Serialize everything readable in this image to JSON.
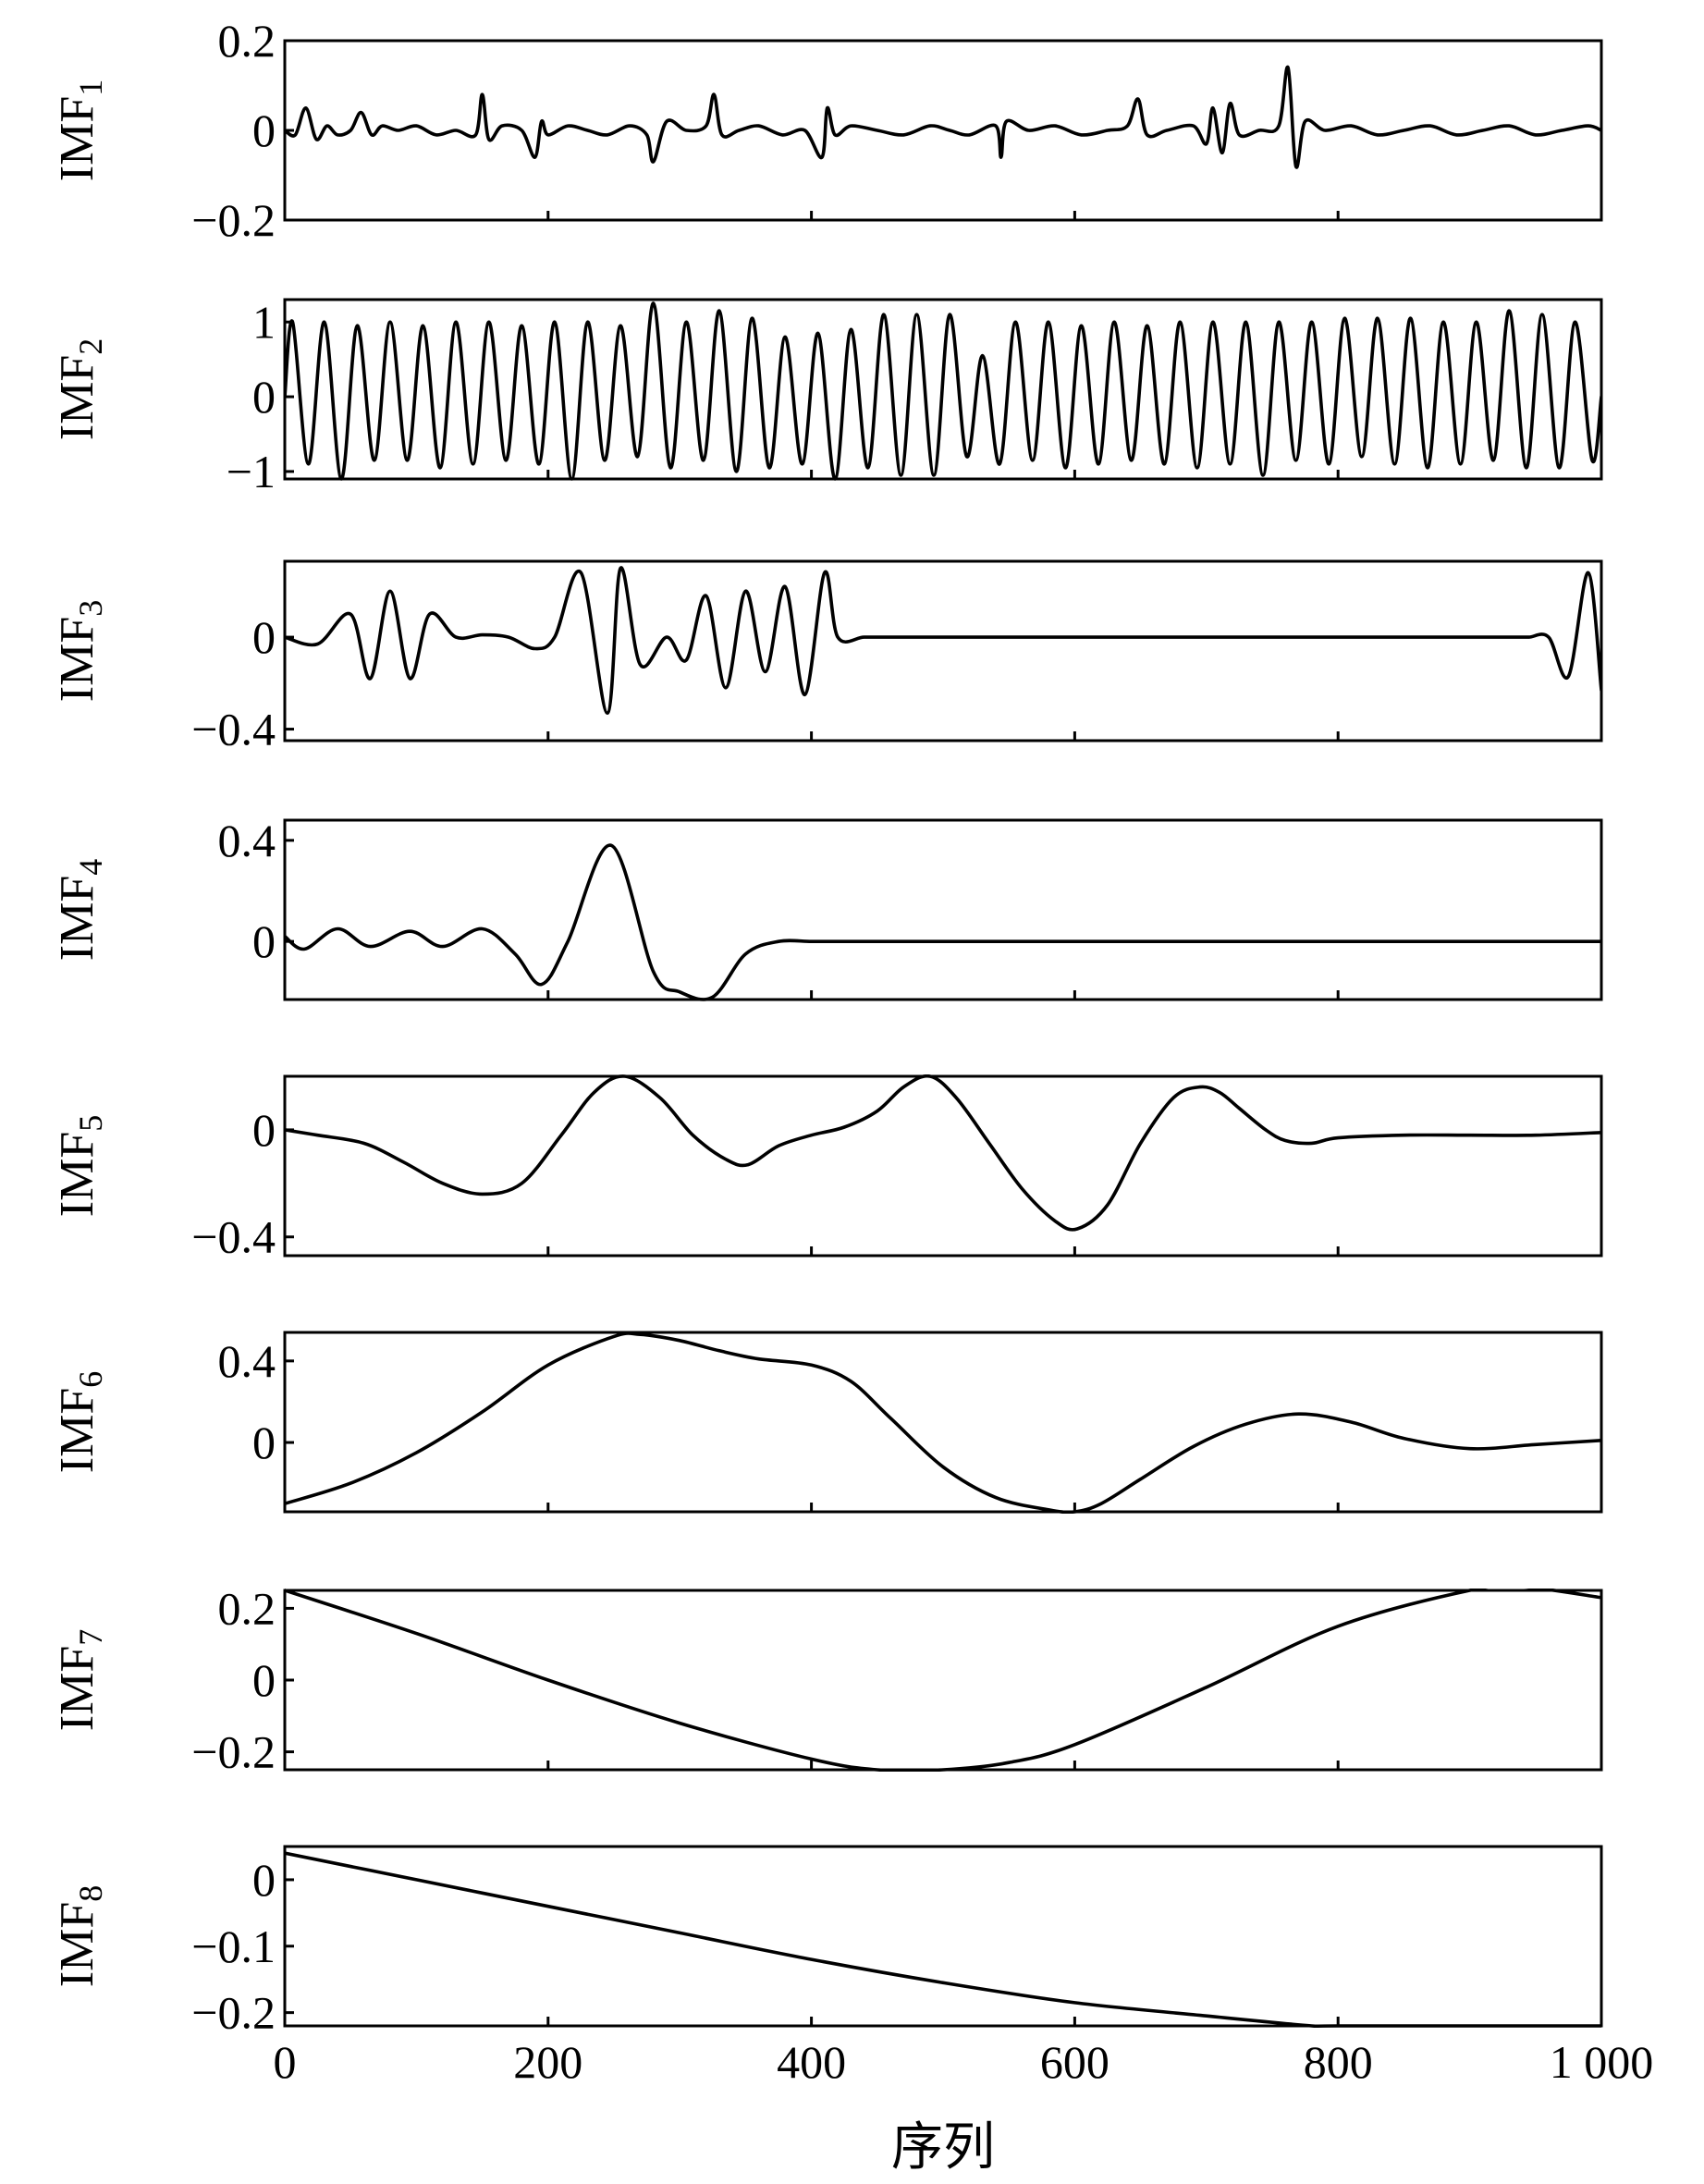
{
  "chart_data": {
    "type": "line",
    "layout": "stacked-subplots",
    "xlabel": "序列",
    "xlim": [
      0,
      1000
    ],
    "xticks": [
      0,
      200,
      400,
      600,
      800,
      1000
    ],
    "xtick_labels": [
      "0",
      "200",
      "400",
      "600",
      "800",
      "1 000"
    ],
    "color": "#000000",
    "subplots": [
      {
        "name": "IMF1",
        "ylabel": "IMF",
        "ylabel_sub": "1",
        "ylim": [
          -0.2,
          0.2
        ],
        "yticks": [
          0.2,
          0,
          -0.2
        ],
        "ytick_labels": [
          "0.2",
          "0",
          "−0.2"
        ],
        "x": [
          0,
          8,
          16,
          24,
          32,
          40,
          50,
          58,
          66,
          74,
          86,
          100,
          115,
          130,
          145,
          150,
          155,
          165,
          180,
          190,
          195,
          200,
          215,
          230,
          245,
          262,
          275,
          280,
          290,
          305,
          320,
          326,
          332,
          345,
          360,
          378,
          395,
          408,
          412,
          418,
          430,
          450,
          470,
          490,
          505,
          520,
          540,
          544,
          548,
          565,
          585,
          605,
          625,
          640,
          648,
          655,
          670,
          690,
          700,
          705,
          712,
          718,
          725,
          740,
          755,
          762,
          768,
          775,
          790,
          810,
          830,
          850,
          870,
          890,
          910,
          930,
          950,
          970,
          990,
          1000
        ],
        "y": [
          0.0,
          -0.01,
          0.05,
          -0.02,
          0.01,
          -0.01,
          0.0,
          0.04,
          -0.01,
          0.01,
          0.0,
          0.01,
          -0.01,
          0.0,
          -0.01,
          0.08,
          -0.02,
          0.01,
          0.0,
          -0.06,
          0.02,
          -0.01,
          0.01,
          0.0,
          -0.01,
          0.01,
          -0.01,
          -0.07,
          0.02,
          0.0,
          0.01,
          0.08,
          -0.01,
          0.0,
          0.01,
          -0.01,
          0.0,
          -0.06,
          0.05,
          -0.01,
          0.01,
          0.0,
          -0.01,
          0.01,
          0.0,
          -0.01,
          0.01,
          -0.06,
          0.02,
          0.0,
          0.01,
          -0.01,
          0.0,
          0.01,
          0.07,
          -0.01,
          0.0,
          0.01,
          -0.03,
          0.05,
          -0.05,
          0.06,
          -0.01,
          0.0,
          0.01,
          0.14,
          -0.08,
          0.02,
          0.0,
          0.01,
          -0.01,
          0.0,
          0.01,
          -0.01,
          0.0,
          0.01,
          -0.01,
          0.0,
          0.01,
          0.0
        ]
      },
      {
        "name": "IMF2",
        "ylabel": "IMF",
        "ylabel_sub": "2",
        "ylim": [
          -1.1,
          1.3
        ],
        "yticks": [
          1,
          0,
          -1
        ],
        "ytick_labels": [
          "1",
          "0",
          "−1"
        ],
        "x": [
          0,
          6,
          18,
          30,
          43,
          55,
          68,
          80,
          93,
          105,
          118,
          130,
          143,
          155,
          168,
          180,
          193,
          205,
          218,
          230,
          243,
          255,
          268,
          280,
          293,
          305,
          318,
          330,
          343,
          355,
          368,
          380,
          393,
          405,
          418,
          430,
          443,
          455,
          468,
          480,
          493,
          505,
          518,
          530,
          543,
          555,
          568,
          580,
          593,
          605,
          618,
          630,
          643,
          655,
          668,
          680,
          693,
          705,
          718,
          730,
          743,
          755,
          768,
          780,
          793,
          805,
          818,
          830,
          843,
          855,
          868,
          880,
          893,
          905,
          918,
          930,
          943,
          955,
          968,
          980,
          993,
          1000
        ],
        "y": [
          0,
          1.0,
          -0.9,
          1.0,
          -1.1,
          0.95,
          -0.85,
          1.0,
          -0.85,
          0.95,
          -0.95,
          1.0,
          -0.9,
          1.0,
          -0.85,
          0.95,
          -0.9,
          1.0,
          -1.1,
          1.0,
          -0.85,
          0.95,
          -0.8,
          1.25,
          -0.95,
          1.0,
          -0.85,
          1.15,
          -1.0,
          1.05,
          -0.95,
          0.8,
          -0.9,
          0.85,
          -1.1,
          0.9,
          -0.95,
          1.1,
          -1.05,
          1.1,
          -1.05,
          1.1,
          -0.8,
          0.55,
          -0.9,
          1.0,
          -0.85,
          1.0,
          -0.95,
          0.95,
          -0.9,
          1.0,
          -0.85,
          0.95,
          -0.9,
          1.0,
          -0.95,
          1.0,
          -0.9,
          1.0,
          -1.05,
          1.0,
          -0.85,
          1.0,
          -0.9,
          1.05,
          -0.8,
          1.05,
          -0.9,
          1.05,
          -0.95,
          1.0,
          -0.9,
          1.0,
          -0.85,
          1.15,
          -0.95,
          1.1,
          -0.95,
          1.0,
          -0.85,
          0.0
        ]
      },
      {
        "name": "IMF3",
        "ylabel": "IMF",
        "ylabel_sub": "3",
        "ylim": [
          -0.45,
          0.33
        ],
        "yticks": [
          0,
          -0.4
        ],
        "ytick_labels": [
          "0",
          "−0.4"
        ],
        "x": [
          0,
          25,
          50,
          65,
          80,
          95,
          110,
          130,
          150,
          170,
          190,
          205,
          225,
          245,
          255,
          270,
          290,
          305,
          320,
          335,
          350,
          365,
          380,
          395,
          410,
          420,
          440,
          460,
          480,
          490,
          500,
          515,
          530,
          545,
          560,
          575,
          590,
          605,
          630,
          650,
          670,
          690,
          710,
          730,
          750,
          770,
          790,
          810,
          840,
          870,
          890,
          900,
          910,
          925,
          935,
          945,
          960,
          975,
          990,
          1000
        ],
        "y": [
          0.0,
          -0.03,
          0.1,
          -0.18,
          0.2,
          -0.18,
          0.1,
          0.0,
          0.01,
          0.0,
          -0.05,
          0.0,
          0.28,
          -0.33,
          0.3,
          -0.12,
          0.0,
          -0.1,
          0.18,
          -0.22,
          0.2,
          -0.15,
          0.22,
          -0.25,
          0.28,
          0.0,
          0.0,
          0.0,
          0.0,
          0.0,
          0.0,
          0.0,
          0.0,
          0.0,
          0.0,
          0.0,
          0.0,
          0.0,
          0.0,
          0.0,
          0.0,
          0.0,
          0.0,
          0.0,
          0.0,
          0.0,
          0.0,
          0.0,
          0.0,
          0.0,
          0.0,
          0.0,
          0.0,
          0.0,
          0.0,
          0.0,
          0.0,
          -0.17,
          0.28,
          -0.23
        ]
      },
      {
        "name": "IMF4",
        "ylabel": "IMF",
        "ylabel_sub": "4",
        "ylim": [
          -0.23,
          0.48
        ],
        "yticks": [
          0.4,
          0
        ],
        "ytick_labels": [
          "0.4",
          "0"
        ],
        "x": [
          0,
          15,
          40,
          65,
          95,
          120,
          150,
          175,
          195,
          215,
          248,
          280,
          300,
          325,
          350,
          375,
          400,
          425,
          445,
          465,
          485,
          500,
          520,
          540,
          560,
          580,
          600,
          620,
          640,
          660,
          680,
          700,
          720,
          740,
          760,
          785,
          810,
          830,
          850,
          870,
          890,
          910,
          930,
          950,
          975,
          1000
        ],
        "y": [
          0.02,
          -0.03,
          0.05,
          -0.02,
          0.04,
          -0.02,
          0.05,
          -0.05,
          -0.17,
          0.0,
          0.38,
          -0.12,
          -0.2,
          -0.22,
          -0.05,
          0.0,
          0.0,
          0.0,
          0.0,
          0.0,
          0.0,
          0.0,
          0.0,
          0.0,
          0.0,
          0.0,
          0.0,
          0.0,
          0.0,
          0.0,
          0.0,
          0.0,
          0.0,
          0.0,
          0.0,
          0.0,
          0.0,
          0.0,
          0.0,
          0.0,
          0.0,
          0.0,
          0.0,
          0.0,
          0.0,
          0.0
        ]
      },
      {
        "name": "IMF5",
        "ylabel": "IMF",
        "ylabel_sub": "5",
        "ylim": [
          -0.47,
          0.2
        ],
        "yticks": [
          0,
          -0.4
        ],
        "ytick_labels": [
          "0",
          "−0.4"
        ],
        "x": [
          0,
          25,
          60,
          90,
          120,
          150,
          180,
          210,
          235,
          258,
          285,
          310,
          335,
          352,
          375,
          400,
          425,
          450,
          470,
          490,
          510,
          535,
          560,
          585,
          602,
          625,
          650,
          675,
          695,
          710,
          725,
          745,
          760,
          780,
          800,
          850,
          900,
          950,
          1000
        ],
        "y": [
          0.0,
          -0.02,
          -0.05,
          -0.12,
          -0.2,
          -0.24,
          -0.2,
          -0.02,
          0.14,
          0.2,
          0.12,
          -0.02,
          -0.11,
          -0.13,
          -0.06,
          -0.02,
          0.01,
          0.07,
          0.16,
          0.2,
          0.12,
          -0.05,
          -0.22,
          -0.34,
          -0.37,
          -0.28,
          -0.05,
          0.12,
          0.16,
          0.14,
          0.08,
          0.0,
          -0.04,
          -0.05,
          -0.03,
          -0.02,
          -0.02,
          -0.02,
          -0.01
        ]
      },
      {
        "name": "IMF6",
        "ylabel": "IMF",
        "ylabel_sub": "6",
        "ylim": [
          -0.34,
          0.54
        ],
        "yticks": [
          0.4,
          0
        ],
        "ytick_labels": [
          "0.4",
          "0"
        ],
        "x": [
          0,
          50,
          100,
          150,
          200,
          250,
          270,
          300,
          330,
          360,
          400,
          430,
          460,
          500,
          540,
          580,
          600,
          620,
          650,
          690,
          730,
          770,
          810,
          850,
          900,
          950,
          1000
        ],
        "y": [
          -0.3,
          -0.2,
          -0.05,
          0.15,
          0.38,
          0.52,
          0.53,
          0.5,
          0.45,
          0.41,
          0.38,
          0.3,
          0.12,
          -0.12,
          -0.27,
          -0.33,
          -0.34,
          -0.3,
          -0.18,
          -0.02,
          0.09,
          0.14,
          0.1,
          0.02,
          -0.03,
          -0.01,
          0.01
        ]
      },
      {
        "name": "IMF7",
        "ylabel": "IMF",
        "ylabel_sub": "7",
        "ylim": [
          -0.25,
          0.25
        ],
        "yticks": [
          0.2,
          0,
          -0.2
        ],
        "ytick_labels": [
          "0.2",
          "0",
          "−0.2"
        ],
        "x": [
          0,
          100,
          200,
          300,
          400,
          450,
          500,
          550,
          600,
          700,
          800,
          900,
          940,
          1000
        ],
        "y": [
          0.25,
          0.13,
          0.0,
          -0.12,
          -0.22,
          -0.25,
          -0.25,
          -0.23,
          -0.18,
          -0.02,
          0.15,
          0.25,
          0.26,
          0.23
        ]
      },
      {
        "name": "IMF8",
        "ylabel": "IMF",
        "ylabel_sub": "8",
        "ylim": [
          -0.22,
          0.05
        ],
        "yticks": [
          0,
          -0.1,
          -0.2
        ],
        "ytick_labels": [
          "0",
          "−0.1",
          "−0.2"
        ],
        "x": [
          0,
          100,
          200,
          300,
          400,
          500,
          600,
          700,
          780,
          800,
          1000
        ],
        "y": [
          0.04,
          0.0,
          -0.04,
          -0.08,
          -0.12,
          -0.155,
          -0.185,
          -0.205,
          -0.22,
          -0.22,
          -0.22
        ]
      }
    ]
  }
}
